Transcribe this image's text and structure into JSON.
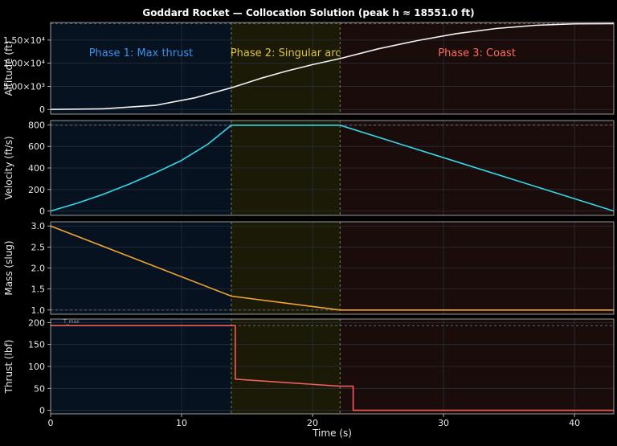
{
  "chart_data": {
    "type": "line",
    "title": "Goddard Rocket  — Collocation Solution  (peak h ≈ 18551.0 ft)",
    "xlabel": "Time  (s)",
    "xlim": [
      0,
      43
    ],
    "x_ticks": [
      "0",
      "10",
      "20",
      "30",
      "40"
    ],
    "x_tick_values": [
      0,
      10,
      20,
      30,
      40
    ],
    "grid": true,
    "phases": [
      {
        "label": "Phase 1: Max thrust",
        "t_start": 0,
        "t_end": 13.8,
        "color": "#3b8fe8",
        "fill": "#06121f"
      },
      {
        "label": "Phase 2: Singular arc",
        "t_start": 13.8,
        "t_end": 22.1,
        "color": "#e0c341",
        "fill": "#1a1a06"
      },
      {
        "label": "Phase 3: Coast",
        "t_start": 22.1,
        "t_end": 43,
        "color": "#ff6a5a",
        "fill": "#1a0c0a"
      }
    ],
    "panels": [
      {
        "ylabel": "Altitude  (ft)",
        "ylim": [
          -1000,
          18800
        ],
        "y_ticks": [
          "0",
          "5.00×10³",
          "1.00×10⁴",
          "1.50×10⁴"
        ],
        "y_tick_values": [
          0,
          5000,
          10000,
          15000
        ],
        "ref_line": 18551,
        "color": "#f2f2f2",
        "series": {
          "x": [
            0,
            4,
            8,
            11,
            13.8,
            16,
            18,
            20,
            22.1,
            25,
            28,
            31,
            34,
            37,
            40,
            43
          ],
          "y": [
            0,
            150,
            900,
            2500,
            4700,
            6700,
            8300,
            9700,
            11000,
            13100,
            14900,
            16400,
            17500,
            18200,
            18500,
            18551
          ]
        }
      },
      {
        "ylabel": "Velocity  (ft/s)",
        "ylim": [
          -40,
          840
        ],
        "y_ticks": [
          "0",
          "200",
          "400",
          "600",
          "800"
        ],
        "y_tick_values": [
          0,
          200,
          400,
          600,
          800
        ],
        "ref_line": 797,
        "color": "#33d6e6",
        "series": {
          "x": [
            0,
            2,
            4,
            6,
            8,
            10,
            12,
            13.8,
            22.1,
            43
          ],
          "y": [
            0,
            72,
            155,
            250,
            355,
            470,
            620,
            797,
            797,
            0
          ]
        }
      },
      {
        "ylabel": "Mass  (slug)",
        "ylim": [
          0.9,
          3.1
        ],
        "y_ticks": [
          "1.0",
          "1.5",
          "2.0",
          "2.5",
          "3.0"
        ],
        "y_tick_values": [
          1.0,
          1.5,
          2.0,
          2.5,
          3.0
        ],
        "ref_line": 1.0,
        "color": "#f2a533",
        "series": {
          "x": [
            0,
            13.8,
            22.1,
            43
          ],
          "y": [
            3.0,
            1.33,
            1.0,
            1.0
          ]
        }
      },
      {
        "ylabel": "Thrust  (lbf)",
        "ylim": [
          -8,
          208
        ],
        "y_ticks": [
          "0",
          "50",
          "100",
          "150",
          "200"
        ],
        "y_tick_values": [
          0,
          50,
          100,
          150,
          200
        ],
        "ref_line": 193,
        "ref_label": "T_max",
        "color": "#f25c5c",
        "series": {
          "x": [
            0,
            14.1,
            14.1,
            22.1,
            22.1,
            23.1,
            23.1,
            43
          ],
          "y": [
            193,
            193,
            71,
            55,
            55,
            55,
            0,
            0
          ]
        }
      }
    ]
  }
}
